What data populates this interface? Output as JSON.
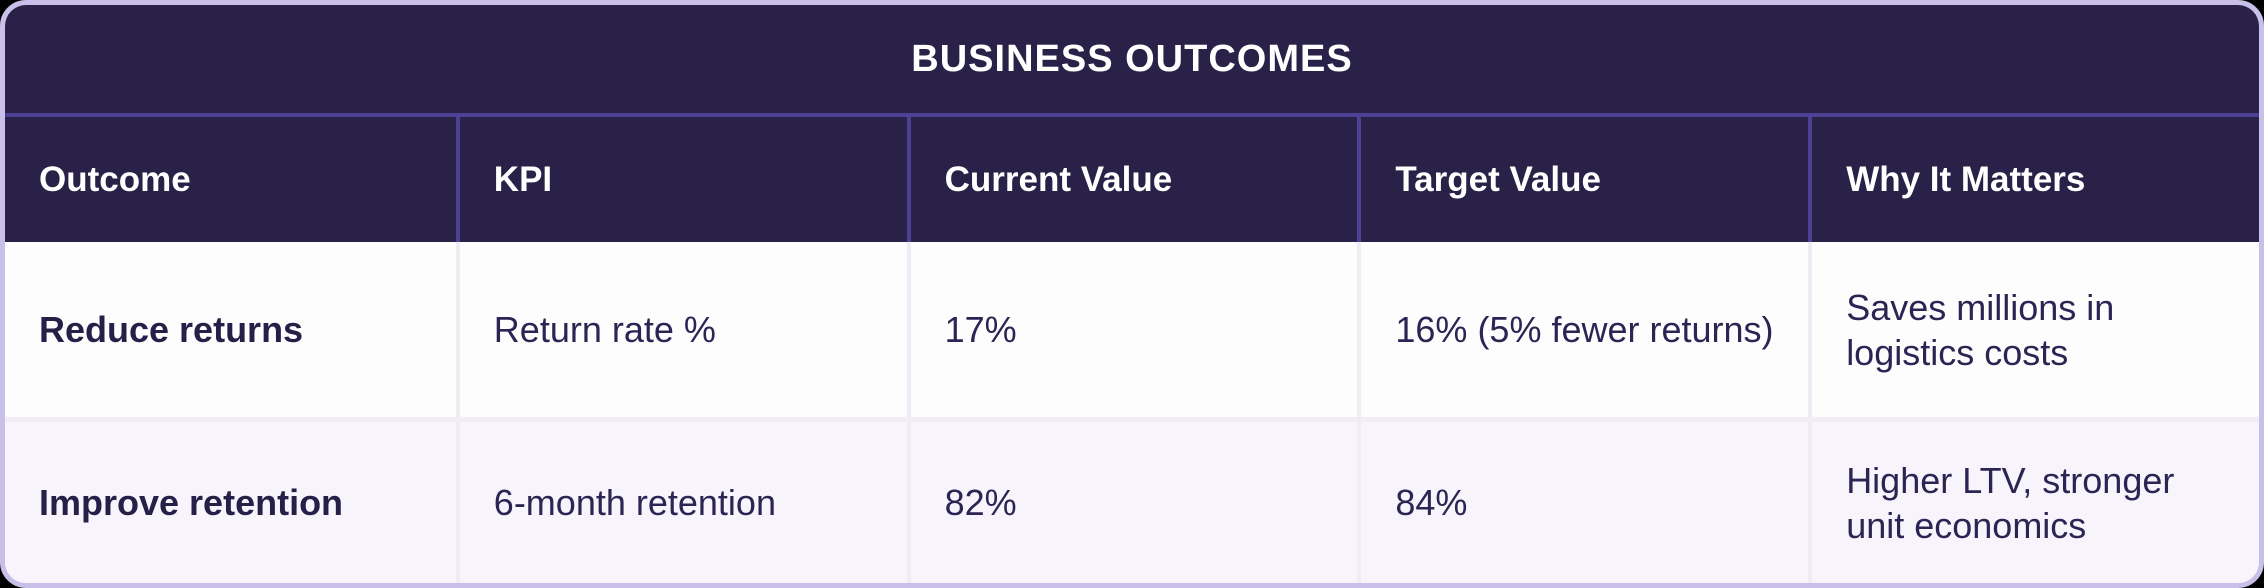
{
  "table": {
    "title": "BUSINESS OUTCOMES",
    "columns": {
      "outcome": "Outcome",
      "kpi": "KPI",
      "current": "Current Value",
      "target": "Target Value",
      "why": "Why It Matters"
    },
    "rows": [
      {
        "outcome": "Reduce returns",
        "kpi": "Return rate %",
        "current": "17%",
        "target": "16% (5% fewer returns)",
        "why": "Saves millions in\nlogistics costs"
      },
      {
        "outcome": "Improve retention",
        "kpi": "6-month retention",
        "current": "82%",
        "target": "84%",
        "why": "Higher LTV, stronger\nunit economics"
      }
    ]
  },
  "colors": {
    "navy": "#292147",
    "purple_line": "#4c4195",
    "outer_border": "#c8c0e8",
    "row1_bg": "#fdfdfe",
    "row2_bg": "#f7f5fb",
    "body_separator": "#efecf4",
    "row_separator": "#f0edf5",
    "text_dark": "#2c2453",
    "text_light": "#ffffff"
  }
}
